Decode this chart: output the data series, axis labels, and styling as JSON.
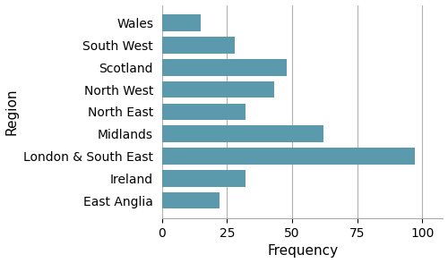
{
  "categories": [
    "East Anglia",
    "Ireland",
    "London & South East",
    "Midlands",
    "North East",
    "North West",
    "Scotland",
    "South West",
    "Wales"
  ],
  "values": [
    22,
    32,
    97,
    62,
    32,
    43,
    48,
    28,
    15
  ],
  "bar_color": "#5b9aad",
  "xlabel": "Frequency",
  "ylabel": "Region",
  "xlim": [
    0,
    108
  ],
  "xticks": [
    0,
    25,
    50,
    75,
    100
  ],
  "grid_color": "#b0b0b0",
  "bar_height": 0.75,
  "figsize": [
    5.0,
    2.94
  ],
  "dpi": 100,
  "label_fontsize": 10,
  "tick_fontsize": 10,
  "ylabel_fontsize": 11,
  "xlabel_fontsize": 11
}
